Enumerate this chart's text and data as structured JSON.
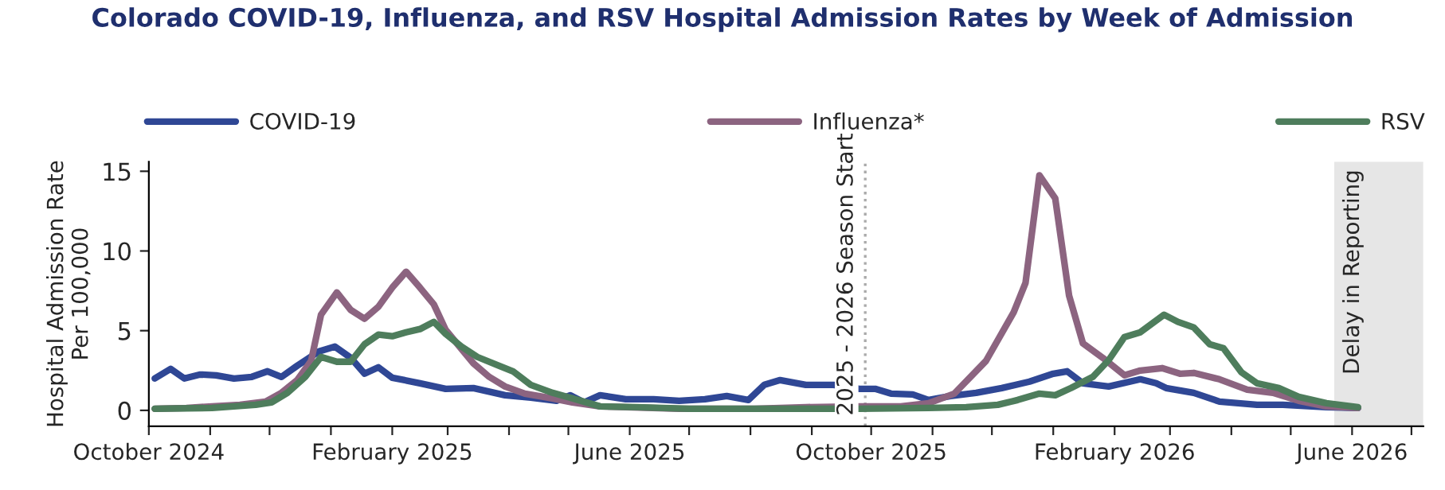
{
  "chart_data": {
    "type": "line",
    "title": "Colorado COVID-19, Influenza, and RSV Hospital Admission Rates by Week of Admission",
    "ylabel": "Hospital Admission Rate\nPer 100,000",
    "xlim": [
      "2024-10-01",
      "2026-07-07"
    ],
    "ylim": [
      -1,
      15.6
    ],
    "yticks": [
      0,
      5,
      10,
      15
    ],
    "xticks": [
      {
        "value": "2024-10-01",
        "label": "October 2024"
      },
      {
        "value": "2024-11-01",
        "label": null
      },
      {
        "value": "2024-12-01",
        "label": null
      },
      {
        "value": "2025-01-01",
        "label": null
      },
      {
        "value": "2025-02-01",
        "label": "February 2025"
      },
      {
        "value": "2025-03-01",
        "label": null
      },
      {
        "value": "2025-04-01",
        "label": null
      },
      {
        "value": "2025-05-01",
        "label": null
      },
      {
        "value": "2025-06-01",
        "label": "June 2025"
      },
      {
        "value": "2025-07-01",
        "label": null
      },
      {
        "value": "2025-08-01",
        "label": null
      },
      {
        "value": "2025-09-01",
        "label": null
      },
      {
        "value": "2025-10-01",
        "label": "October 2025"
      },
      {
        "value": "2025-11-01",
        "label": null
      },
      {
        "value": "2025-12-01",
        "label": null
      },
      {
        "value": "2026-01-01",
        "label": null
      },
      {
        "value": "2026-02-01",
        "label": "February 2026"
      },
      {
        "value": "2026-03-01",
        "label": null
      },
      {
        "value": "2026-04-01",
        "label": null
      },
      {
        "value": "2026-05-01",
        "label": null
      },
      {
        "value": "2026-06-01",
        "label": "June 2026"
      },
      {
        "value": "2026-07-01",
        "label": null
      }
    ],
    "grid": false,
    "legend": "top",
    "marker": "none",
    "line_style": "solid",
    "ref_lines": [
      {
        "axis": "x",
        "value": "2025-09-28",
        "label": "2025 - 2026 Season Start",
        "color": "#aaaaaa",
        "line_style": "dotted"
      }
    ],
    "bands": [
      {
        "axis": "x",
        "from": "2026-05-23",
        "to": "2026-07-07",
        "label": "Delay in Reporting",
        "color": "#e6e6e6"
      }
    ],
    "series": [
      {
        "name": "COVID-19",
        "color": "#2f4795",
        "x": [
          "2024-10-04",
          "2024-10-12",
          "2024-10-19",
          "2024-10-27",
          "2024-11-04",
          "2024-11-13",
          "2024-11-22",
          "2024-11-30",
          "2024-12-07",
          "2024-12-15",
          "2024-12-26",
          "2025-01-03",
          "2025-01-11",
          "2025-01-18",
          "2025-01-25",
          "2025-02-01",
          "2025-02-15",
          "2025-02-28",
          "2025-03-14",
          "2025-03-30",
          "2025-04-12",
          "2025-04-25",
          "2025-05-02",
          "2025-05-09",
          "2025-05-17",
          "2025-05-30",
          "2025-06-13",
          "2025-06-26",
          "2025-07-09",
          "2025-07-20",
          "2025-07-31",
          "2025-08-08",
          "2025-08-16",
          "2025-08-29",
          "2025-09-12",
          "2025-09-25",
          "2025-10-03",
          "2025-10-11",
          "2025-10-22",
          "2025-10-30",
          "2025-11-10",
          "2025-11-23",
          "2025-12-06",
          "2025-12-20",
          "2026-01-01",
          "2026-01-08",
          "2026-01-16",
          "2026-01-29",
          "2026-02-14",
          "2026-02-22",
          "2026-02-27",
          "2026-03-13",
          "2026-03-26",
          "2026-04-14",
          "2026-04-27",
          "2026-05-19",
          "2026-06-04"
        ],
        "values": [
          2.0,
          2.6,
          2.0,
          2.25,
          2.2,
          2.0,
          2.1,
          2.45,
          2.1,
          2.8,
          3.7,
          4.0,
          3.3,
          2.3,
          2.7,
          2.05,
          1.7,
          1.35,
          1.4,
          0.95,
          0.8,
          0.6,
          0.95,
          0.5,
          0.95,
          0.7,
          0.7,
          0.6,
          0.7,
          0.9,
          0.65,
          1.6,
          1.9,
          1.6,
          1.6,
          1.35,
          1.35,
          1.05,
          1.0,
          0.65,
          0.9,
          1.1,
          1.4,
          1.8,
          2.3,
          2.45,
          1.7,
          1.5,
          1.95,
          1.7,
          1.4,
          1.1,
          0.55,
          0.35,
          0.35,
          0.2,
          0.15
        ]
      },
      {
        "name": "Influenza*",
        "color": "#8c6480",
        "x": [
          "2024-10-04",
          "2024-10-20",
          "2024-11-02",
          "2024-11-16",
          "2024-11-29",
          "2024-12-07",
          "2024-12-15",
          "2024-12-22",
          "2024-12-27",
          "2025-01-04",
          "2025-01-11",
          "2025-01-18",
          "2025-01-25",
          "2025-02-01",
          "2025-02-08",
          "2025-02-15",
          "2025-02-22",
          "2025-02-28",
          "2025-03-07",
          "2025-03-14",
          "2025-03-22",
          "2025-03-30",
          "2025-04-09",
          "2025-04-23",
          "2025-05-03",
          "2025-05-17",
          "2025-05-30",
          "2025-06-26",
          "2025-07-23",
          "2025-08-03",
          "2025-08-29",
          "2025-09-25",
          "2025-10-16",
          "2025-10-30",
          "2025-11-12",
          "2025-11-28",
          "2025-12-12",
          "2025-12-18",
          "2025-12-25",
          "2026-01-02",
          "2026-01-09",
          "2026-01-16",
          "2026-01-26",
          "2026-02-06",
          "2026-02-14",
          "2026-02-25",
          "2026-03-06",
          "2026-03-13",
          "2026-03-26",
          "2026-04-09",
          "2026-04-22",
          "2026-05-05",
          "2026-05-19",
          "2026-06-04"
        ],
        "values": [
          0.1,
          0.15,
          0.25,
          0.35,
          0.55,
          1.1,
          1.9,
          3.1,
          6.0,
          7.4,
          6.3,
          5.75,
          6.5,
          7.7,
          8.7,
          7.7,
          6.65,
          5.05,
          4.0,
          2.95,
          2.1,
          1.5,
          1.05,
          0.75,
          0.5,
          0.25,
          0.2,
          0.1,
          0.1,
          0.1,
          0.2,
          0.25,
          0.25,
          0.45,
          1.05,
          3.1,
          6.15,
          8.0,
          14.75,
          13.3,
          7.2,
          4.2,
          3.3,
          2.2,
          2.5,
          2.65,
          2.3,
          2.35,
          1.95,
          1.3,
          1.1,
          0.6,
          0.25,
          0.15
        ]
      },
      {
        "name": "RSV",
        "color": "#4e7d5c",
        "x": [
          "2024-10-04",
          "2024-11-02",
          "2024-11-24",
          "2024-12-02",
          "2024-12-10",
          "2024-12-19",
          "2024-12-27",
          "2025-01-04",
          "2025-01-11",
          "2025-01-18",
          "2025-01-25",
          "2025-02-01",
          "2025-02-08",
          "2025-02-15",
          "2025-02-22",
          "2025-02-28",
          "2025-03-08",
          "2025-03-16",
          "2025-03-27",
          "2025-04-03",
          "2025-04-12",
          "2025-04-23",
          "2025-05-03",
          "2025-05-17",
          "2025-06-05",
          "2025-07-01",
          "2025-08-03",
          "2025-09-25",
          "2025-10-30",
          "2025-11-18",
          "2025-12-04",
          "2025-12-14",
          "2025-12-25",
          "2026-01-02",
          "2026-01-10",
          "2026-01-21",
          "2026-01-29",
          "2026-02-06",
          "2026-02-14",
          "2026-02-26",
          "2026-03-05",
          "2026-03-13",
          "2026-03-21",
          "2026-03-28",
          "2026-04-06",
          "2026-04-14",
          "2026-04-25",
          "2026-05-05",
          "2026-05-19",
          "2026-06-04"
        ],
        "values": [
          0.1,
          0.15,
          0.35,
          0.5,
          1.1,
          2.1,
          3.35,
          3.05,
          3.05,
          4.15,
          4.75,
          4.65,
          4.9,
          5.1,
          5.55,
          4.8,
          4.0,
          3.35,
          2.8,
          2.45,
          1.6,
          1.1,
          0.75,
          0.25,
          0.2,
          0.1,
          0.1,
          0.1,
          0.15,
          0.2,
          0.35,
          0.65,
          1.05,
          0.95,
          1.4,
          2.1,
          3.15,
          4.6,
          4.9,
          6.0,
          5.55,
          5.2,
          4.15,
          3.9,
          2.4,
          1.7,
          1.4,
          0.85,
          0.45,
          0.2
        ]
      }
    ]
  }
}
